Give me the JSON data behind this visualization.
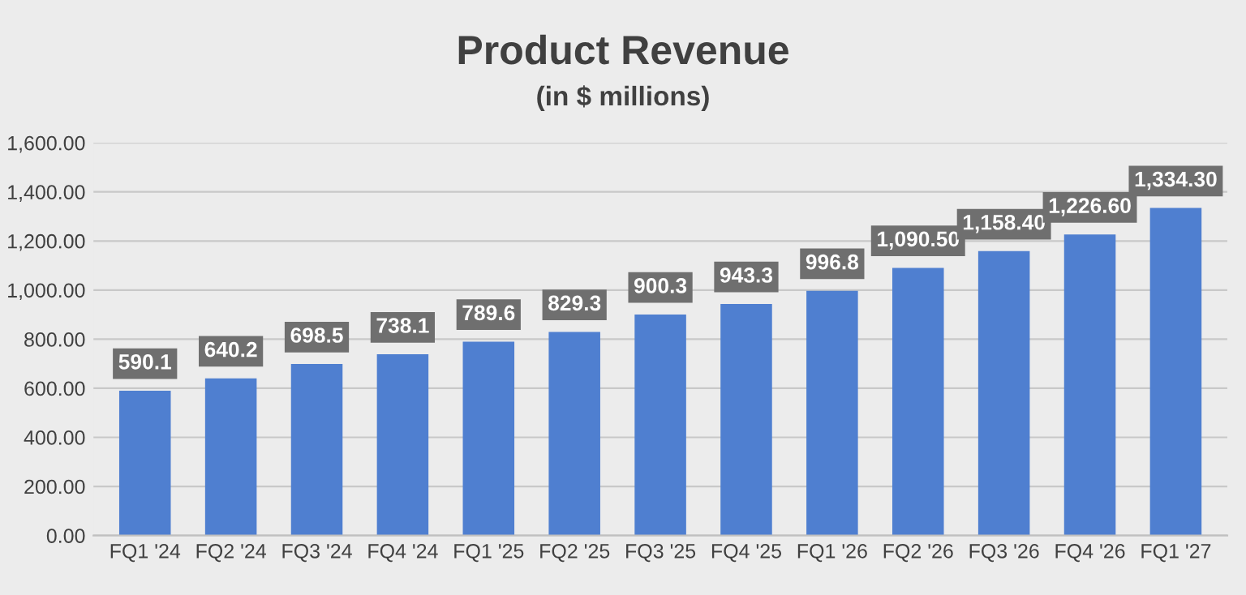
{
  "chart_data": {
    "type": "bar",
    "title": "Product Revenue",
    "subtitle": "(in $ millions)",
    "categories": [
      "FQ1 '24",
      "FQ2 '24",
      "FQ3 '24",
      "FQ4 '24",
      "FQ1 '25",
      "FQ2 '25",
      "FQ3 '25",
      "FQ4 '25",
      "FQ1 '26",
      "FQ2 '26",
      "FQ3 '26",
      "FQ4 '26",
      "FQ1 '27"
    ],
    "values": [
      590.1,
      640.2,
      698.5,
      738.1,
      789.6,
      829.3,
      900.3,
      943.3,
      996.8,
      1090.5,
      1158.4,
      1226.6,
      1334.3
    ],
    "value_labels": [
      "590.1",
      "640.2",
      "698.5",
      "738.1",
      "789.6",
      "829.3",
      "900.3",
      "943.3",
      "996.8",
      "1,090.50",
      "1,158.40",
      "1,226.60",
      "1,334.30"
    ],
    "color": "#4f7fd0",
    "ylim": [
      0,
      1600
    ],
    "yticks": [
      {
        "value": 0,
        "label": "0.00"
      },
      {
        "value": 200,
        "label": "200.00"
      },
      {
        "value": 400,
        "label": "400.00"
      },
      {
        "value": 600,
        "label": "600.00"
      },
      {
        "value": 800,
        "label": "800.00"
      },
      {
        "value": 1000,
        "label": "1,000.00"
      },
      {
        "value": 1200,
        "label": "1,200.00"
      },
      {
        "value": 1400,
        "label": "1,400.00"
      },
      {
        "value": 1600,
        "label": "1,600.00"
      }
    ],
    "grid": "y",
    "legend": false
  }
}
